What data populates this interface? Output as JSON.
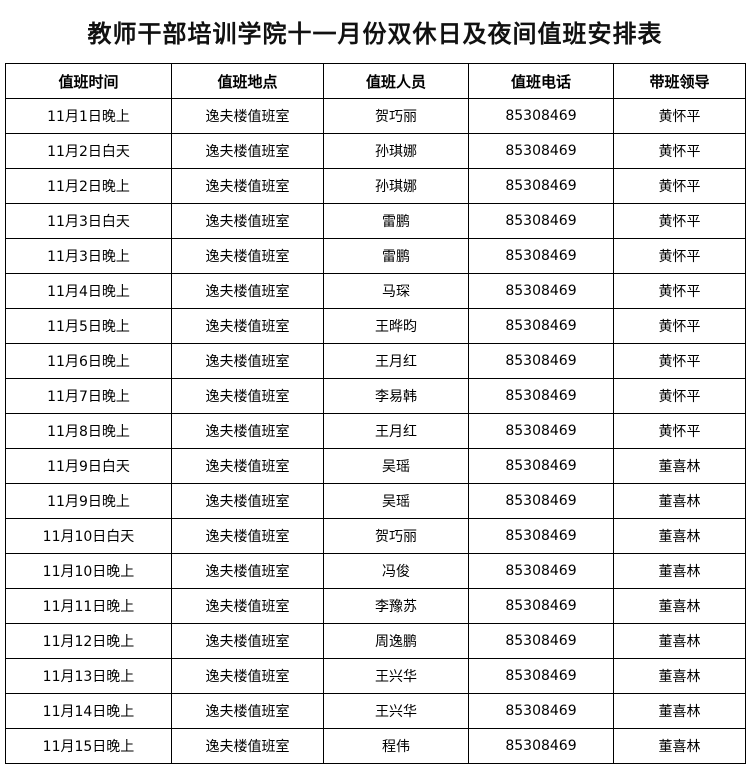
{
  "title": "教师干部培训学院十一月份双休日及夜间值班安排表",
  "columns": [
    "值班时间",
    "值班地点",
    "值班人员",
    "值班电话",
    "带班领导"
  ],
  "rows": [
    [
      "11月1日晚上",
      "逸夫楼值班室",
      "贺巧丽",
      "85308469",
      "黄怀平"
    ],
    [
      "11月2日白天",
      "逸夫楼值班室",
      "孙琪娜",
      "85308469",
      "黄怀平"
    ],
    [
      "11月2日晚上",
      "逸夫楼值班室",
      "孙琪娜",
      "85308469",
      "黄怀平"
    ],
    [
      "11月3日白天",
      "逸夫楼值班室",
      "雷鹏",
      "85308469",
      "黄怀平"
    ],
    [
      "11月3日晚上",
      "逸夫楼值班室",
      "雷鹏",
      "85308469",
      "黄怀平"
    ],
    [
      "11月4日晚上",
      "逸夫楼值班室",
      "马琛",
      "85308469",
      "黄怀平"
    ],
    [
      "11月5日晚上",
      "逸夫楼值班室",
      "王晔昀",
      "85308469",
      "黄怀平"
    ],
    [
      "11月6日晚上",
      "逸夫楼值班室",
      "王月红",
      "85308469",
      "黄怀平"
    ],
    [
      "11月7日晚上",
      "逸夫楼值班室",
      "李易韩",
      "85308469",
      "黄怀平"
    ],
    [
      "11月8日晚上",
      "逸夫楼值班室",
      "王月红",
      "85308469",
      "黄怀平"
    ],
    [
      "11月9日白天",
      "逸夫楼值班室",
      "吴瑶",
      "85308469",
      "董喜林"
    ],
    [
      "11月9日晚上",
      "逸夫楼值班室",
      "吴瑶",
      "85308469",
      "董喜林"
    ],
    [
      "11月10日白天",
      "逸夫楼值班室",
      "贺巧丽",
      "85308469",
      "董喜林"
    ],
    [
      "11月10日晚上",
      "逸夫楼值班室",
      "冯俊",
      "85308469",
      "董喜林"
    ],
    [
      "11月11日晚上",
      "逸夫楼值班室",
      "李豫苏",
      "85308469",
      "董喜林"
    ],
    [
      "11月12日晚上",
      "逸夫楼值班室",
      "周逸鹏",
      "85308469",
      "董喜林"
    ],
    [
      "11月13日晚上",
      "逸夫楼值班室",
      "王兴华",
      "85308469",
      "董喜林"
    ],
    [
      "11月14日晚上",
      "逸夫楼值班室",
      "王兴华",
      "85308469",
      "董喜林"
    ],
    [
      "11月15日晚上",
      "逸夫楼值班室",
      "程伟",
      "85308469",
      "董喜林"
    ]
  ]
}
